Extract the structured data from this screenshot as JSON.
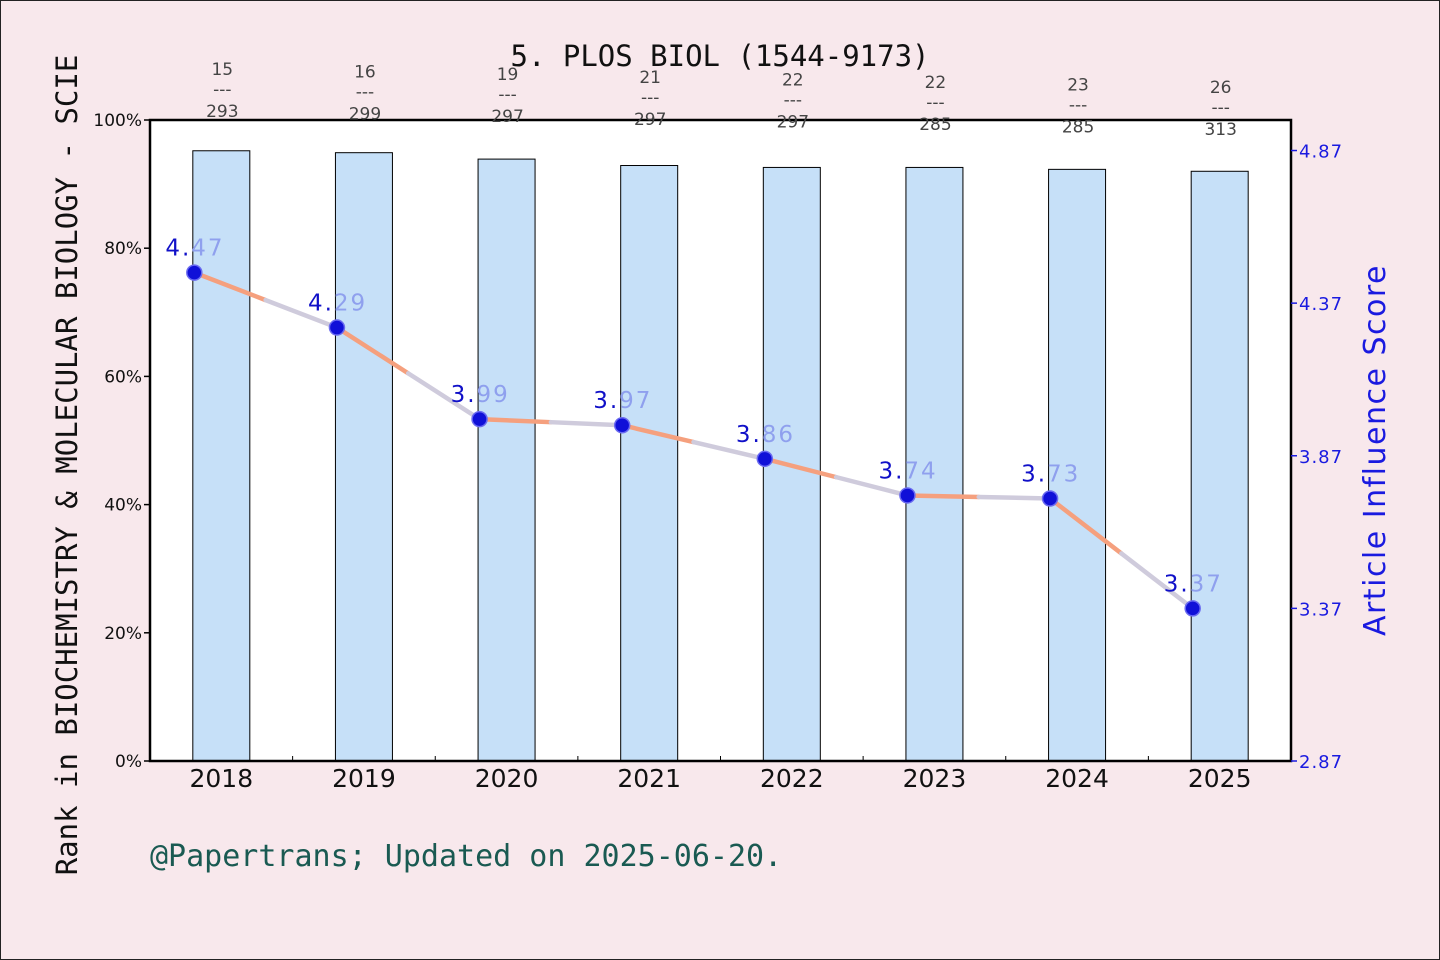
{
  "chart_data": {
    "type": "bar+line",
    "title": "5. PLOS BIOL (1544-9173)",
    "ylabel_left": "Rank in BIOCHEMISTRY & MOLECULAR BIOLOGY - SCIE",
    "ylabel_right": "Article Influence Score",
    "footer": "@Papertrans; Updated on 2025-06-20.",
    "categories": [
      "2018",
      "2019",
      "2020",
      "2021",
      "2022",
      "2023",
      "2024",
      "2025"
    ],
    "left_axis": {
      "ylim": [
        0,
        100
      ],
      "ticks": [
        0,
        20,
        40,
        60,
        80,
        100
      ],
      "tick_labels": [
        "0%",
        "20%",
        "40%",
        "60%",
        "80%",
        "100%"
      ]
    },
    "right_axis": {
      "ylim": [
        2.87,
        4.97
      ],
      "ticks": [
        2.87,
        3.37,
        3.87,
        4.37,
        4.87
      ],
      "tick_labels": [
        "2.87",
        "3.37",
        "3.87",
        "4.37",
        "4.87"
      ]
    },
    "bars": {
      "name": "Rank percentile",
      "values": [
        95.2,
        94.9,
        93.9,
        92.9,
        92.6,
        92.6,
        92.3,
        92.0
      ],
      "rank": [
        15,
        16,
        19,
        21,
        22,
        22,
        23,
        26
      ],
      "total": [
        293,
        299,
        297,
        297,
        297,
        285,
        285,
        313
      ],
      "divider": "---",
      "color": "#c6e0f8"
    },
    "line": {
      "name": "Article Influence Score",
      "values": [
        4.47,
        4.29,
        3.99,
        3.97,
        3.86,
        3.74,
        3.73,
        3.37
      ],
      "labels": [
        "4.47",
        "4.29",
        "3.99",
        "3.97",
        "3.86",
        "3.74",
        "3.73",
        "3.37"
      ],
      "colors": [
        "#f5a07e",
        "#cfcbdc"
      ],
      "marker_color": "#1010d8"
    },
    "grid": false,
    "legend": "none"
  }
}
